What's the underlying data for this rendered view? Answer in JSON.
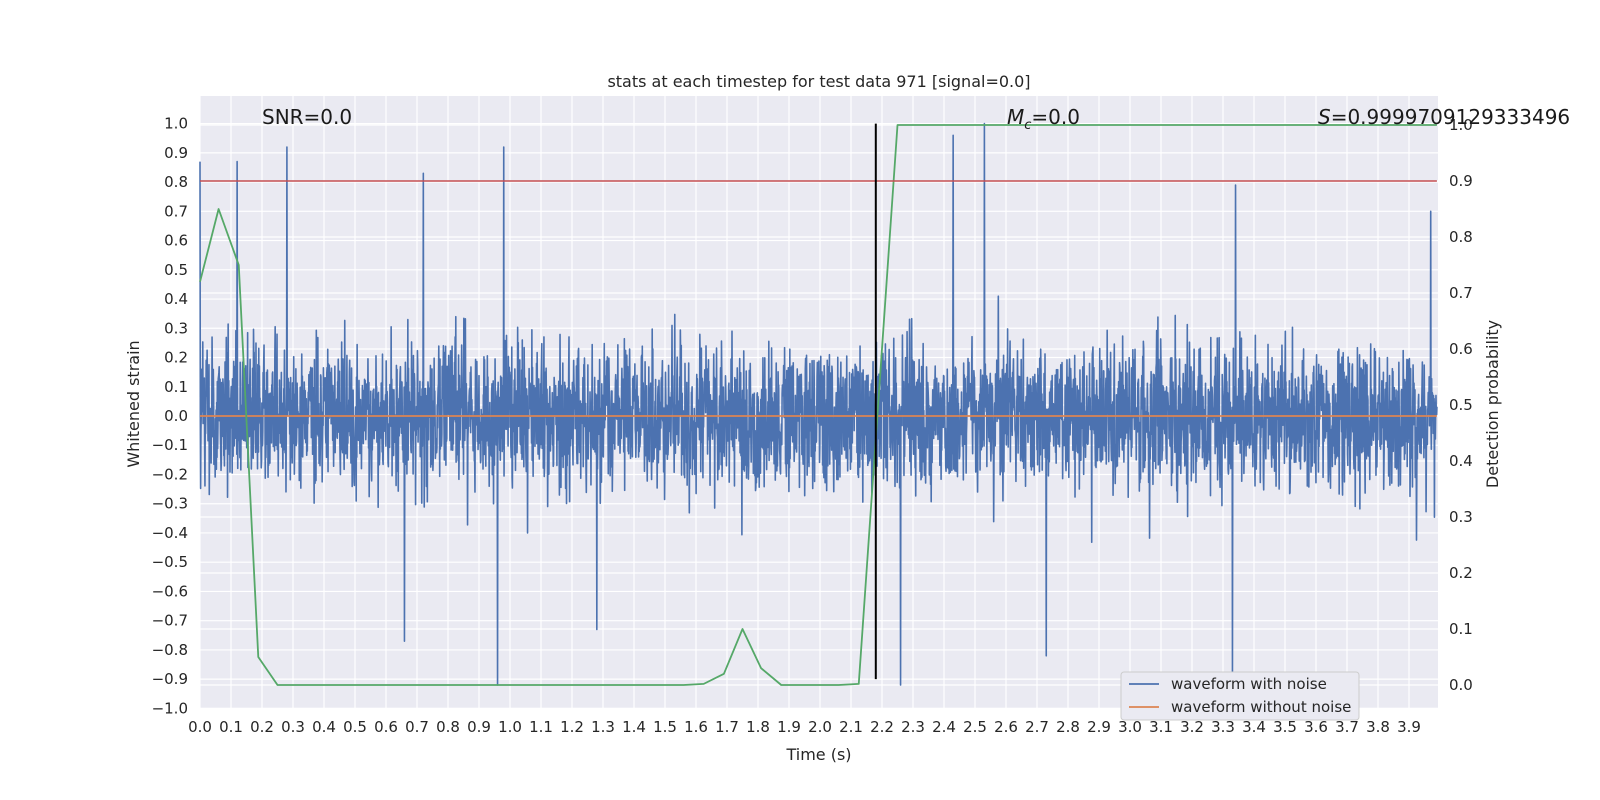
{
  "chart_data": {
    "type": "line",
    "title": "stats at each timestep for test data 971 [signal=0.0]",
    "xlabel": "Time (s)",
    "ylabel_left": "Whitened strain",
    "ylabel_right": "Detection probability",
    "xlim": [
      0.0,
      3.99
    ],
    "ylim_left": [
      -1.05,
      1.1
    ],
    "ylim_right": [
      -0.045,
      1.0
    ],
    "x_ticks": [
      0.0,
      0.1,
      0.2,
      0.3,
      0.4,
      0.5,
      0.6,
      0.7,
      0.8,
      0.9,
      1.0,
      1.1,
      1.2,
      1.3,
      1.4,
      1.5,
      1.6,
      1.7,
      1.8,
      1.9,
      2.0,
      2.1,
      2.2,
      2.3,
      2.4,
      2.5,
      2.6,
      2.7,
      2.8,
      2.9,
      3.0,
      3.1,
      3.2,
      3.3,
      3.4,
      3.5,
      3.6,
      3.7,
      3.8,
      3.9
    ],
    "x_tick_labels": [
      "0.0",
      "0.1",
      "0.2",
      "0.3",
      "0.4",
      "0.5",
      "0.6",
      "0.7",
      "0.8",
      "0.9",
      "1.0",
      "1.1",
      "1.2",
      "1.3",
      "1.4",
      "1.5",
      "1.6",
      "1.7",
      "1.8",
      "1.9",
      "2.0",
      "2.1",
      "2.2",
      "2.3",
      "2.4",
      "2.5",
      "2.6",
      "2.7",
      "2.8",
      "2.9",
      "3.0",
      "3.1",
      "3.2",
      "3.3",
      "3.4",
      "3.5",
      "3.6",
      "3.7",
      "3.8",
      "3.9"
    ],
    "y_left_ticks": [
      -1.0,
      -0.9,
      -0.8,
      -0.7,
      -0.6,
      -0.5,
      -0.4,
      -0.3,
      -0.2,
      -0.1,
      0.0,
      0.1,
      0.2,
      0.3,
      0.4,
      0.5,
      0.6,
      0.7,
      0.8,
      0.9,
      1.0
    ],
    "y_left_tick_labels": [
      "−1.0",
      "−0.9",
      "−0.8",
      "−0.7",
      "−0.6",
      "−0.5",
      "−0.4",
      "−0.3",
      "−0.2",
      "−0.1",
      "0.0",
      "0.1",
      "0.2",
      "0.3",
      "0.4",
      "0.5",
      "0.6",
      "0.7",
      "0.8",
      "0.9",
      "1.0"
    ],
    "y_right_ticks": [
      0.0,
      0.1,
      0.2,
      0.3,
      0.4,
      0.5,
      0.6,
      0.7,
      0.8,
      0.9,
      1.0
    ],
    "y_right_tick_labels": [
      "0.0",
      "0.1",
      "0.2",
      "0.3",
      "0.4",
      "0.5",
      "0.6",
      "0.7",
      "0.8",
      "0.9",
      "1.0"
    ],
    "grid": true,
    "legend_position": "lower-right",
    "series": [
      {
        "name": "waveform with noise",
        "axis": "left",
        "color": "#4c72b0",
        "style": "dense noise centered at 0 with amplitude ~0.35",
        "notable_peaks": [
          {
            "x": 0.0,
            "y": 0.87
          },
          {
            "x": 0.12,
            "y": 0.87
          },
          {
            "x": 0.28,
            "y": 0.92
          },
          {
            "x": 0.72,
            "y": 0.83
          },
          {
            "x": 0.98,
            "y": 0.92
          },
          {
            "x": 2.43,
            "y": 0.96
          },
          {
            "x": 2.53,
            "y": 1.0
          },
          {
            "x": 3.34,
            "y": 0.79
          },
          {
            "x": 3.97,
            "y": 0.7
          }
        ],
        "notable_troughs": [
          {
            "x": 0.96,
            "y": -0.92
          },
          {
            "x": 2.26,
            "y": -0.92
          },
          {
            "x": 3.33,
            "y": -0.88
          },
          {
            "x": 0.66,
            "y": -0.77
          },
          {
            "x": 1.28,
            "y": -0.73
          },
          {
            "x": 2.73,
            "y": -0.82
          }
        ]
      },
      {
        "name": "waveform without noise",
        "axis": "left",
        "color": "#dd8452",
        "x": [
          0.0,
          3.99
        ],
        "y": [
          0.0,
          0.0
        ]
      },
      {
        "name": "",
        "axis": "right",
        "color": "#55a868",
        "x": [
          0.0,
          0.06,
          0.125,
          0.188,
          0.25,
          0.312,
          0.375,
          0.5,
          1.0,
          1.5,
          1.56,
          1.625,
          1.69,
          1.75,
          1.81,
          1.875,
          1.94,
          2.0,
          2.06,
          2.125,
          2.25,
          3.99
        ],
        "y": [
          0.72,
          0.85,
          0.75,
          0.05,
          0.0,
          0.0,
          0.0,
          0.0,
          0.0,
          0.0,
          0.0,
          0.002,
          0.02,
          0.1,
          0.03,
          0.0,
          0.0,
          0.0,
          0.0,
          0.002,
          1.0,
          1.0
        ]
      },
      {
        "name": "",
        "axis": "right",
        "color": "#c44e52",
        "x": [
          0.0,
          3.99
        ],
        "y": [
          0.9,
          0.9
        ]
      }
    ],
    "vertical_line": {
      "x": 2.18,
      "color": "#000000"
    },
    "annotations": [
      {
        "text_parts": [
          "SNR=0.0"
        ]
      },
      {
        "text_parts": [
          "M",
          "c",
          "=0.0"
        ]
      },
      {
        "text_parts": [
          "S",
          "=0.9999709129333496"
        ]
      }
    ]
  }
}
